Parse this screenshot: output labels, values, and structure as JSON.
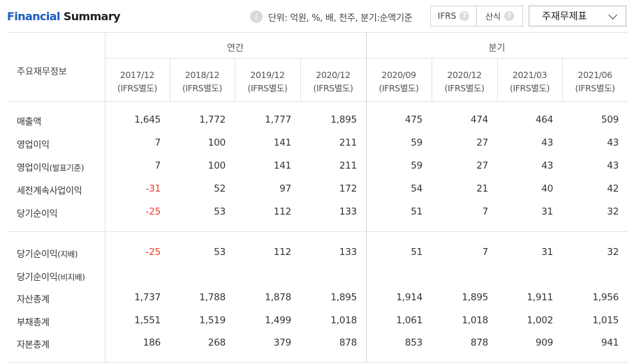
{
  "title": {
    "part1": "Financial",
    "part2": " Summary"
  },
  "unit_note": "단위: 억원, %, 배, 천주, 분기:순액기준",
  "standard_toggle": {
    "ifrs": "IFRS",
    "ifrs_help": "?",
    "formula": "산식",
    "formula_help": "?"
  },
  "statement_select": "주재무제표",
  "header": {
    "row_label": "주요재무정보",
    "annual": "연간",
    "quarterly": "분기",
    "columns": [
      {
        "period": "2017/12",
        "basis": "(IFRS별도)"
      },
      {
        "period": "2018/12",
        "basis": "(IFRS별도)"
      },
      {
        "period": "2019/12",
        "basis": "(IFRS별도)"
      },
      {
        "period": "2020/12",
        "basis": "(IFRS별도)"
      },
      {
        "period": "2020/09",
        "basis": "(IFRS별도)"
      },
      {
        "period": "2020/12",
        "basis": "(IFRS별도)"
      },
      {
        "period": "2021/03",
        "basis": "(IFRS별도)"
      },
      {
        "period": "2021/06",
        "basis": "(IFRS별도)"
      }
    ]
  },
  "rows": [
    {
      "label": "매출액",
      "sub": "",
      "values": [
        "1,645",
        "1,772",
        "1,777",
        "1,895",
        "475",
        "474",
        "464",
        "509"
      ]
    },
    {
      "label": "영업이익",
      "sub": "",
      "values": [
        "7",
        "100",
        "141",
        "211",
        "59",
        "27",
        "43",
        "43"
      ]
    },
    {
      "label": "영업이익",
      "sub": "(발표기준)",
      "values": [
        "7",
        "100",
        "141",
        "211",
        "59",
        "27",
        "43",
        "43"
      ]
    },
    {
      "label": "세전계속사업이익",
      "sub": "",
      "values": [
        "-31",
        "52",
        "97",
        "172",
        "54",
        "21",
        "40",
        "42"
      ]
    },
    {
      "label": "당기순이익",
      "sub": "",
      "values": [
        "-25",
        "53",
        "112",
        "133",
        "51",
        "7",
        "31",
        "32"
      ]
    },
    {
      "label": "당기순이익",
      "sub": "(지배)",
      "values": [
        "-25",
        "53",
        "112",
        "133",
        "51",
        "7",
        "31",
        "32"
      ]
    },
    {
      "label": "당기순이익",
      "sub": "(비지배)",
      "values": [
        "",
        "",
        "",
        "",
        "",
        "",
        "",
        ""
      ]
    },
    {
      "label": "자산총계",
      "sub": "",
      "values": [
        "1,737",
        "1,788",
        "1,878",
        "1,895",
        "1,914",
        "1,895",
        "1,911",
        "1,956"
      ]
    },
    {
      "label": "부채총계",
      "sub": "",
      "values": [
        "1,551",
        "1,519",
        "1,499",
        "1,018",
        "1,061",
        "1,018",
        "1,002",
        "1,015"
      ]
    },
    {
      "label": "자본총계",
      "sub": "",
      "values": [
        "186",
        "268",
        "379",
        "878",
        "853",
        "878",
        "909",
        "941"
      ]
    }
  ],
  "colors": {
    "title_blue": "#1a5cbf",
    "negative": "#e8412c",
    "border": "#e3e3e3"
  }
}
